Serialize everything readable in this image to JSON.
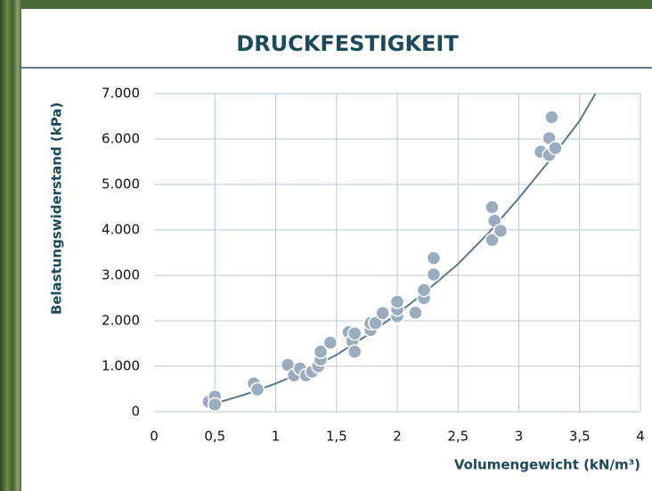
{
  "chart_data": {
    "type": "scatter",
    "title": "DRUCKFESTIGKEIT",
    "x_label": "Volumengewicht (kN/m³)",
    "y_label": "Belastungswiderstand (kPa)",
    "xlim": [
      0,
      4
    ],
    "ylim": [
      0,
      7000
    ],
    "xticks": [
      0,
      {
        "value": 0.5,
        "label": "0,5"
      },
      1,
      {
        "value": 1.5,
        "label": "1,5"
      },
      2,
      {
        "value": 2.5,
        "label": "2,5"
      },
      3,
      {
        "value": 3.5,
        "label": "3,5"
      },
      4
    ],
    "yticks": [
      0,
      {
        "value": 1000,
        "label": "1.000"
      },
      {
        "value": 2000,
        "label": "2.000"
      },
      {
        "value": 3000,
        "label": "3.000"
      },
      {
        "value": 4000,
        "label": "4.000"
      },
      {
        "value": 5000,
        "label": "5.000"
      },
      {
        "value": 6000,
        "label": "6.000"
      },
      {
        "value": 7000,
        "label": "7.000"
      }
    ],
    "grid": true,
    "color": "#9aacbd",
    "x": [
      0.45,
      0.5,
      0.5,
      0.82,
      0.85,
      1.1,
      1.15,
      1.2,
      1.25,
      1.3,
      1.35,
      1.37,
      1.37,
      1.45,
      1.6,
      1.63,
      1.65,
      1.65,
      1.78,
      1.78,
      1.82,
      1.88,
      2.0,
      2.0,
      2.0,
      2.15,
      2.22,
      2.22,
      2.3,
      2.3,
      2.78,
      2.78,
      2.8,
      2.85,
      3.18,
      3.25,
      3.25,
      3.27,
      3.3
    ],
    "values": [
      220,
      330,
      160,
      620,
      490,
      1030,
      800,
      950,
      800,
      880,
      1000,
      1150,
      1320,
      1520,
      1750,
      1550,
      1720,
      1320,
      1800,
      1950,
      1950,
      2170,
      2100,
      2250,
      2420,
      2180,
      2500,
      2680,
      3380,
      3020,
      4500,
      3780,
      4200,
      3980,
      5720,
      6020,
      5650,
      6480,
      5800
    ],
    "trend": {
      "color": "#5a7a8c",
      "x": [
        0.5,
        0.75,
        1,
        1.25,
        1.5,
        1.75,
        2,
        2.25,
        2.5,
        2.75,
        3,
        3.25,
        3.5,
        3.63
      ],
      "values": [
        180,
        380,
        620,
        900,
        1250,
        1680,
        2150,
        2680,
        3250,
        3930,
        4700,
        5520,
        6400,
        7000
      ]
    }
  }
}
